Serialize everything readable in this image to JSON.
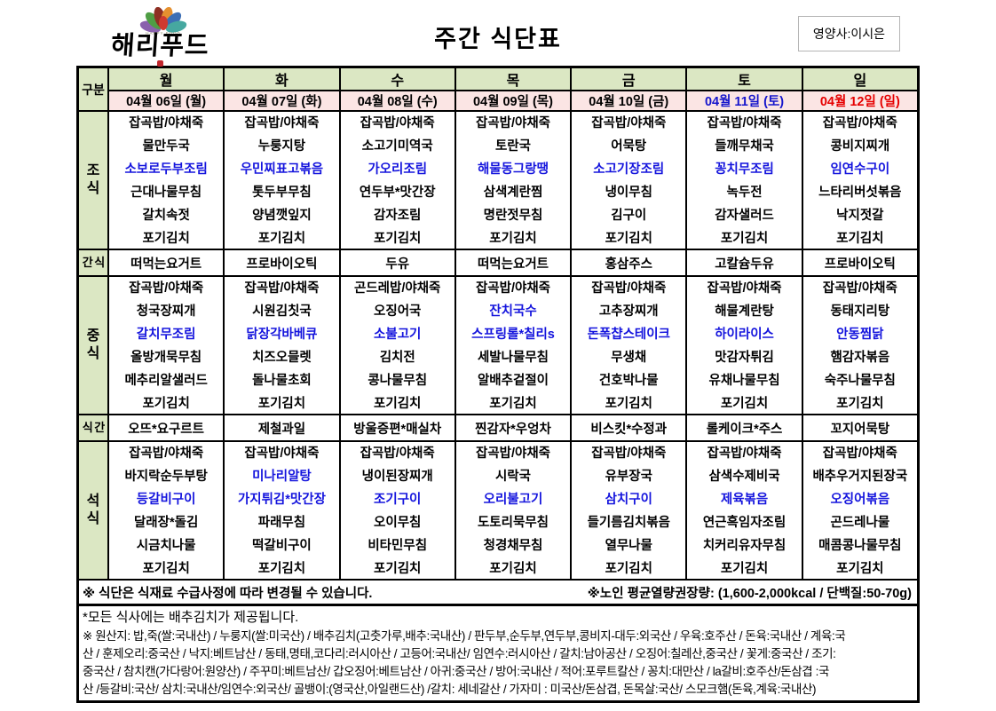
{
  "colors": {
    "header_green": "#dbe7c3",
    "date_pink": "#fbe5e4",
    "highlight_blue": "#1414dd",
    "saturday_blue": "#1515cc",
    "sunday_red": "#e60000"
  },
  "header": {
    "logo_text": "해리푸드",
    "title": "주간 식단표",
    "nutritionist": "영양사:이시은"
  },
  "table": {
    "corner_label": "구분",
    "days": [
      {
        "name": "월",
        "date": "04월 06일 (월)",
        "date_color": "#000000"
      },
      {
        "name": "화",
        "date": "04월 07일 (화)",
        "date_color": "#000000"
      },
      {
        "name": "수",
        "date": "04월 08일 (수)",
        "date_color": "#000000"
      },
      {
        "name": "목",
        "date": "04월 09일 (목)",
        "date_color": "#000000"
      },
      {
        "name": "금",
        "date": "04월 10일 (금)",
        "date_color": "#000000"
      },
      {
        "name": "토",
        "date": "04월 11일 (토)",
        "date_color": "#1515cc"
      },
      {
        "name": "일",
        "date": "04월 12일 (일)",
        "date_color": "#e60000"
      }
    ],
    "sections": [
      {
        "label": "조식",
        "vertical": true,
        "type": "meal",
        "columns": [
          [
            {
              "t": "잡곡밥/야채죽"
            },
            {
              "t": "물만두국"
            },
            {
              "t": "소보로두부조림",
              "hl": true
            },
            {
              "t": "근대나물무침"
            },
            {
              "t": "갈치속젓"
            },
            {
              "t": "포기김치"
            }
          ],
          [
            {
              "t": "잡곡밥/야채죽"
            },
            {
              "t": "누룽지탕"
            },
            {
              "t": "우민찌표고볶음",
              "hl": true
            },
            {
              "t": "톳두부무침"
            },
            {
              "t": "양념깻잎지"
            },
            {
              "t": "포기김치"
            }
          ],
          [
            {
              "t": "잡곡밥/야채죽"
            },
            {
              "t": "소고기미역국"
            },
            {
              "t": "가오리조림",
              "hl": true
            },
            {
              "t": "연두부*맛간장"
            },
            {
              "t": "감자조림"
            },
            {
              "t": "포기김치"
            }
          ],
          [
            {
              "t": "잡곡밥/야채죽"
            },
            {
              "t": "토란국"
            },
            {
              "t": "해물동그랑땡",
              "hl": true
            },
            {
              "t": "삼색계란찜"
            },
            {
              "t": "명란젓무침"
            },
            {
              "t": "포기김치"
            }
          ],
          [
            {
              "t": "잡곡밥/야채죽"
            },
            {
              "t": "어묵탕"
            },
            {
              "t": "소고기장조림",
              "hl": true
            },
            {
              "t": "냉이무침"
            },
            {
              "t": "김구이"
            },
            {
              "t": "포기김치"
            }
          ],
          [
            {
              "t": "잡곡밥/야채죽"
            },
            {
              "t": "들깨무채국"
            },
            {
              "t": "꽁치무조림",
              "hl": true
            },
            {
              "t": "녹두전"
            },
            {
              "t": "감자샐러드"
            },
            {
              "t": "포기김치"
            }
          ],
          [
            {
              "t": "잡곡밥/야채죽"
            },
            {
              "t": "콩비지찌개"
            },
            {
              "t": "임연수구이",
              "hl": true
            },
            {
              "t": "느타리버섯볶음"
            },
            {
              "t": "낙지젓갈"
            },
            {
              "t": "포기김치"
            }
          ]
        ]
      },
      {
        "label": "간 식",
        "vertical": false,
        "type": "single",
        "items": [
          "떠먹는요거트",
          "프로바이오틱",
          "두유",
          "떠먹는요거트",
          "홍삼주스",
          "고칼슘두유",
          "프로바이오틱"
        ]
      },
      {
        "label": "중식",
        "vertical": true,
        "type": "meal",
        "columns": [
          [
            {
              "t": "잡곡밥/야채죽"
            },
            {
              "t": "청국장찌개"
            },
            {
              "t": "갈치무조림",
              "hl": true
            },
            {
              "t": "올방개묵무침"
            },
            {
              "t": "메추리알샐러드"
            },
            {
              "t": "포기김치"
            }
          ],
          [
            {
              "t": "잡곡밥/야채죽"
            },
            {
              "t": "시원김칫국"
            },
            {
              "t": "닭장각바베큐",
              "hl": true
            },
            {
              "t": "치즈오믈렛"
            },
            {
              "t": "돌나물초회"
            },
            {
              "t": "포기김치"
            }
          ],
          [
            {
              "t": "곤드레밥/야채죽"
            },
            {
              "t": "오징어국"
            },
            {
              "t": "소불고기",
              "hl": true
            },
            {
              "t": "김치전"
            },
            {
              "t": "콩나물무침"
            },
            {
              "t": "포기김치"
            }
          ],
          [
            {
              "t": "잡곡밥/야채죽"
            },
            {
              "t": "잔치국수",
              "hl": true
            },
            {
              "t": "스프링롤*칠리s",
              "hl": true
            },
            {
              "t": "세발나물무침"
            },
            {
              "t": "알배추겉절이"
            },
            {
              "t": "포기김치"
            }
          ],
          [
            {
              "t": "잡곡밥/야채죽"
            },
            {
              "t": "고추장찌개"
            },
            {
              "t": "돈폭챱스테이크",
              "hl": true
            },
            {
              "t": "무생채"
            },
            {
              "t": "건호박나물"
            },
            {
              "t": "포기김치"
            }
          ],
          [
            {
              "t": "잡곡밥/야채죽"
            },
            {
              "t": "해물계란탕"
            },
            {
              "t": "하이라이스",
              "hl": true
            },
            {
              "t": "맛감자튀김"
            },
            {
              "t": "유채나물무침"
            },
            {
              "t": "포기김치"
            }
          ],
          [
            {
              "t": "잡곡밥/야채죽"
            },
            {
              "t": "동태지리탕"
            },
            {
              "t": "안동찜닭",
              "hl": true
            },
            {
              "t": "햄감자볶음"
            },
            {
              "t": "숙주나물무침"
            },
            {
              "t": "포기김치"
            }
          ]
        ]
      },
      {
        "label": "식 간",
        "vertical": false,
        "type": "single",
        "items": [
          "오뜨*요구르트",
          "제철과일",
          "방울증편*매실차",
          "찐감자*우엉차",
          "비스킷*수정과",
          "롤케이크*주스",
          "꼬지어묵탕"
        ]
      },
      {
        "label": "석식",
        "vertical": true,
        "type": "meal",
        "columns": [
          [
            {
              "t": "잡곡밥/야채죽"
            },
            {
              "t": "바지락순두부탕"
            },
            {
              "t": "등갈비구이",
              "hl": true
            },
            {
              "t": "달래장*돌김"
            },
            {
              "t": "시금치나물"
            },
            {
              "t": "포기김치"
            }
          ],
          [
            {
              "t": "잡곡밥/야채죽"
            },
            {
              "t": "미나리알탕",
              "hl": true
            },
            {
              "t": "가지튀김*맛간장",
              "hl": true
            },
            {
              "t": "파래무침"
            },
            {
              "t": "떡갈비구이"
            },
            {
              "t": "포기김치"
            }
          ],
          [
            {
              "t": "잡곡밥/야채죽"
            },
            {
              "t": "냉이된장찌개"
            },
            {
              "t": "조기구이",
              "hl": true
            },
            {
              "t": "오이무침"
            },
            {
              "t": "비타민무침"
            },
            {
              "t": "포기김치"
            }
          ],
          [
            {
              "t": "잡곡밥/야채죽"
            },
            {
              "t": "시락국"
            },
            {
              "t": "오리불고기",
              "hl": true
            },
            {
              "t": "도토리묵무침"
            },
            {
              "t": "청경채무침"
            },
            {
              "t": "포기김치"
            }
          ],
          [
            {
              "t": "잡곡밥/야채죽"
            },
            {
              "t": "유부장국"
            },
            {
              "t": "삼치구이",
              "hl": true
            },
            {
              "t": "들기름김치볶음"
            },
            {
              "t": "열무나물"
            },
            {
              "t": "포기김치"
            }
          ],
          [
            {
              "t": "잡곡밥/야채죽"
            },
            {
              "t": "삼색수제비국"
            },
            {
              "t": "제육볶음",
              "hl": true
            },
            {
              "t": "연근흑임자조림"
            },
            {
              "t": "치커리유자무침"
            },
            {
              "t": "포기김치"
            }
          ],
          [
            {
              "t": "잡곡밥/야채죽"
            },
            {
              "t": "배추우거지된장국"
            },
            {
              "t": "오징어볶음",
              "hl": true
            },
            {
              "t": "곤드레나물"
            },
            {
              "t": "매콤콩나물무침"
            },
            {
              "t": "포기김치"
            }
          ]
        ]
      }
    ],
    "notice_left": "※ 식단은 식재료 수급사정에 따라 변경될 수 있습니다.",
    "notice_right": "※노인 평균열량권장량: (1,600-2,000kcal / 단백질:50-70g)"
  },
  "footer": {
    "lines": [
      "*모든 식사에는 배추김치가 제공됩니다.",
      "※ 원산지: 밥,죽(쌀:국내산) / 누룽지(쌀:미국산) / 배추김치(고춧가루,배추:국내산) / 판두부,순두부,연두부,콩비지-대두:외국산 / 우육:호주산 / 돈육:국내산 / 계육:국",
      "산 / 훈제오리:중국산 / 낙지:베트남산 / 동태,명태,코다리:러시아산 / 고등어:국내산/ 임연수:러시아산 / 갈치:남아공산 / 오징어:칠레산,중국산 / 꽃게:중국산 / 조기:",
      "중국산 / 참치캔(가다랑어:원양산) / 주꾸미:베트남산/ 갑오징어:베트남산 / 아귀:중국산 / 방어:국내산 / 적어:포루트칼산 / 꽁치:대만산 / la갈비:호주산/돈삼겹 :국",
      "산 /등갈비:국산/ 삼치:국내산/임연수:외국산/ 골뱅이:(영국산,아일랜드산) /갈치: 세네갈산 / 가자미 : 미국산/돈삼겹, 돈목살:국산/ 스모크햄(돈육,계육:국내산)"
    ]
  }
}
